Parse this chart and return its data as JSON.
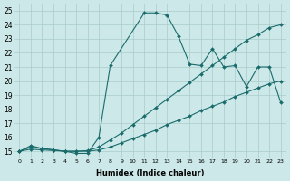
{
  "xlabel": "Humidex (Indice chaleur)",
  "bg_color": "#cce8e8",
  "grid_color": "#aacccc",
  "line_color": "#1a6b6b",
  "xlim": [
    -0.5,
    23.5
  ],
  "ylim": [
    14.5,
    25.5
  ],
  "xticks": [
    0,
    1,
    2,
    3,
    4,
    5,
    6,
    7,
    8,
    9,
    10,
    11,
    12,
    13,
    14,
    15,
    16,
    17,
    18,
    19,
    20,
    21,
    22,
    23
  ],
  "yticks": [
    15,
    16,
    17,
    18,
    19,
    20,
    21,
    22,
    23,
    24,
    25
  ],
  "line1_x": [
    0,
    1,
    2,
    3,
    4,
    5,
    6,
    7,
    8,
    11,
    12,
    13,
    14,
    15,
    16,
    17,
    18,
    19,
    20,
    21,
    22,
    23
  ],
  "line1_y": [
    15,
    15.4,
    15.2,
    15.1,
    15.0,
    14.85,
    14.85,
    16.0,
    21.1,
    24.85,
    24.85,
    24.7,
    23.2,
    21.2,
    21.1,
    22.3,
    21.0,
    21.1,
    19.6,
    21.0,
    21.0,
    18.5
  ],
  "line2_x": [
    0,
    1,
    2,
    3,
    4,
    5,
    6,
    7,
    8,
    9,
    10,
    11,
    12,
    13,
    14,
    15,
    16,
    17,
    18,
    19,
    20,
    21,
    22,
    23
  ],
  "line2_y": [
    15,
    15.3,
    15.2,
    15.1,
    15.0,
    15.0,
    15.05,
    15.3,
    15.8,
    16.3,
    16.9,
    17.5,
    18.1,
    18.7,
    19.3,
    19.9,
    20.5,
    21.1,
    21.7,
    22.3,
    22.9,
    23.3,
    23.8,
    24.0
  ],
  "line3_x": [
    0,
    1,
    2,
    3,
    4,
    5,
    6,
    7,
    8,
    9,
    10,
    11,
    12,
    13,
    14,
    15,
    16,
    17,
    18,
    19,
    20,
    21,
    22,
    23
  ],
  "line3_y": [
    15,
    15.15,
    15.1,
    15.05,
    15.0,
    15.0,
    15.0,
    15.1,
    15.3,
    15.6,
    15.9,
    16.2,
    16.5,
    16.9,
    17.2,
    17.5,
    17.9,
    18.2,
    18.5,
    18.9,
    19.2,
    19.5,
    19.8,
    20.0
  ]
}
